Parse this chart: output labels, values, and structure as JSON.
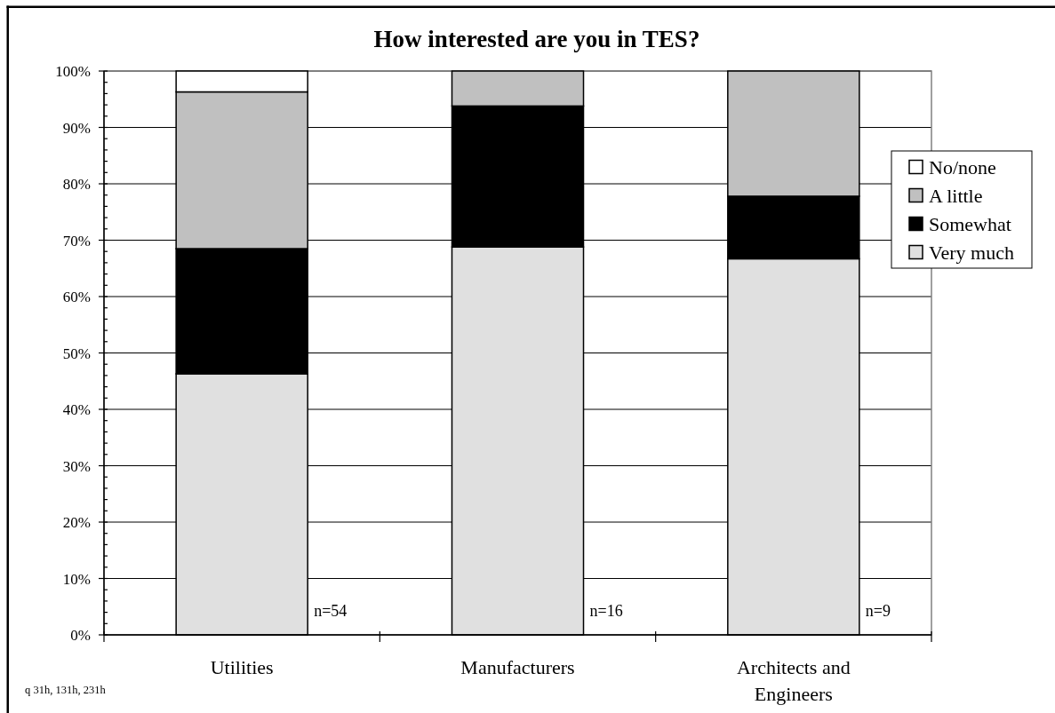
{
  "chart_data": {
    "type": "bar",
    "title": "How interested are you in TES?",
    "categories": [
      "Utilities",
      "Manufacturers",
      "Architects and Engineers"
    ],
    "series": [
      {
        "name": "Very much",
        "color": "#e0e0e0",
        "values": [
          46.3,
          68.8,
          66.7
        ]
      },
      {
        "name": "Somewhat",
        "color": "#000000",
        "values": [
          22.2,
          25.0,
          11.1
        ]
      },
      {
        "name": "A little",
        "color": "#c0c0c0",
        "values": [
          27.8,
          6.2,
          22.2
        ]
      },
      {
        "name": "No/none",
        "color": "#ffffff",
        "values": [
          3.7,
          0,
          0
        ]
      }
    ],
    "stacked": true,
    "ylim": [
      0,
      100
    ],
    "yticks": [
      {
        "value": 0,
        "label": "0%"
      },
      {
        "value": 2,
        "label": null
      },
      {
        "value": 4,
        "label": null
      },
      {
        "value": 6,
        "label": null
      },
      {
        "value": 8,
        "label": null
      },
      {
        "value": 10,
        "label": "10%"
      },
      {
        "value": 12,
        "label": null
      },
      {
        "value": 14,
        "label": null
      },
      {
        "value": 16,
        "label": null
      },
      {
        "value": 18,
        "label": null
      },
      {
        "value": 20,
        "label": "20%"
      },
      {
        "value": 22,
        "label": null
      },
      {
        "value": 24,
        "label": null
      },
      {
        "value": 26,
        "label": null
      },
      {
        "value": 28,
        "label": null
      },
      {
        "value": 30,
        "label": "30%"
      },
      {
        "value": 32,
        "label": null
      },
      {
        "value": 34,
        "label": null
      },
      {
        "value": 36,
        "label": null
      },
      {
        "value": 38,
        "label": null
      },
      {
        "value": 40,
        "label": "40%"
      },
      {
        "value": 42,
        "label": null
      },
      {
        "value": 44,
        "label": null
      },
      {
        "value": 46,
        "label": null
      },
      {
        "value": 48,
        "label": null
      },
      {
        "value": 50,
        "label": "50%"
      },
      {
        "value": 52,
        "label": null
      },
      {
        "value": 54,
        "label": null
      },
      {
        "value": 56,
        "label": null
      },
      {
        "value": 58,
        "label": null
      },
      {
        "value": 60,
        "label": "60%"
      },
      {
        "value": 62,
        "label": null
      },
      {
        "value": 64,
        "label": null
      },
      {
        "value": 66,
        "label": null
      },
      {
        "value": 68,
        "label": null
      },
      {
        "value": 70,
        "label": "70%"
      },
      {
        "value": 72,
        "label": null
      },
      {
        "value": 74,
        "label": null
      },
      {
        "value": 76,
        "label": null
      },
      {
        "value": 78,
        "label": null
      },
      {
        "value": 80,
        "label": "80%"
      },
      {
        "value": 82,
        "label": null
      },
      {
        "value": 84,
        "label": null
      },
      {
        "value": 86,
        "label": null
      },
      {
        "value": 88,
        "label": null
      },
      {
        "value": 90,
        "label": "90%"
      },
      {
        "value": 92,
        "label": null
      },
      {
        "value": 94,
        "label": null
      },
      {
        "value": 96,
        "label": null
      },
      {
        "value": 98,
        "label": null
      },
      {
        "value": 100,
        "label": "100%"
      }
    ],
    "grid": "y",
    "legend": "right",
    "annotations": [
      "n=54",
      "n=16",
      "n=9",
      "q 31h, 131h, 231h"
    ]
  }
}
